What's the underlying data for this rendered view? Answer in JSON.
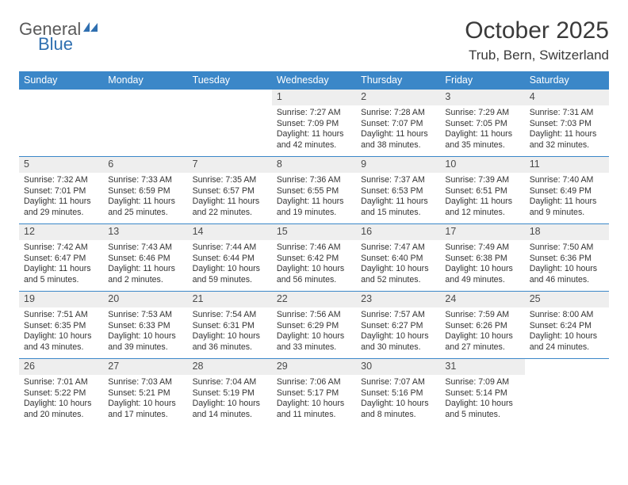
{
  "logo": {
    "word1": "General",
    "word2": "Blue"
  },
  "title": "October 2025",
  "location": "Trub, Bern, Switzerland",
  "colors": {
    "header_bg": "#3b87c8",
    "header_text": "#ffffff",
    "daynum_bg": "#eeeeee",
    "rule": "#3b87c8",
    "logo_blue": "#2f6fb0",
    "logo_gray": "#6a6a6a",
    "text": "#333333",
    "page_bg": "#ffffff"
  },
  "weekdays": [
    "Sunday",
    "Monday",
    "Tuesday",
    "Wednesday",
    "Thursday",
    "Friday",
    "Saturday"
  ],
  "weeks": [
    [
      {
        "n": "",
        "sr": "",
        "ss": "",
        "dl": ""
      },
      {
        "n": "",
        "sr": "",
        "ss": "",
        "dl": ""
      },
      {
        "n": "",
        "sr": "",
        "ss": "",
        "dl": ""
      },
      {
        "n": "1",
        "sr": "Sunrise: 7:27 AM",
        "ss": "Sunset: 7:09 PM",
        "dl": "Daylight: 11 hours and 42 minutes."
      },
      {
        "n": "2",
        "sr": "Sunrise: 7:28 AM",
        "ss": "Sunset: 7:07 PM",
        "dl": "Daylight: 11 hours and 38 minutes."
      },
      {
        "n": "3",
        "sr": "Sunrise: 7:29 AM",
        "ss": "Sunset: 7:05 PM",
        "dl": "Daylight: 11 hours and 35 minutes."
      },
      {
        "n": "4",
        "sr": "Sunrise: 7:31 AM",
        "ss": "Sunset: 7:03 PM",
        "dl": "Daylight: 11 hours and 32 minutes."
      }
    ],
    [
      {
        "n": "5",
        "sr": "Sunrise: 7:32 AM",
        "ss": "Sunset: 7:01 PM",
        "dl": "Daylight: 11 hours and 29 minutes."
      },
      {
        "n": "6",
        "sr": "Sunrise: 7:33 AM",
        "ss": "Sunset: 6:59 PM",
        "dl": "Daylight: 11 hours and 25 minutes."
      },
      {
        "n": "7",
        "sr": "Sunrise: 7:35 AM",
        "ss": "Sunset: 6:57 PM",
        "dl": "Daylight: 11 hours and 22 minutes."
      },
      {
        "n": "8",
        "sr": "Sunrise: 7:36 AM",
        "ss": "Sunset: 6:55 PM",
        "dl": "Daylight: 11 hours and 19 minutes."
      },
      {
        "n": "9",
        "sr": "Sunrise: 7:37 AM",
        "ss": "Sunset: 6:53 PM",
        "dl": "Daylight: 11 hours and 15 minutes."
      },
      {
        "n": "10",
        "sr": "Sunrise: 7:39 AM",
        "ss": "Sunset: 6:51 PM",
        "dl": "Daylight: 11 hours and 12 minutes."
      },
      {
        "n": "11",
        "sr": "Sunrise: 7:40 AM",
        "ss": "Sunset: 6:49 PM",
        "dl": "Daylight: 11 hours and 9 minutes."
      }
    ],
    [
      {
        "n": "12",
        "sr": "Sunrise: 7:42 AM",
        "ss": "Sunset: 6:47 PM",
        "dl": "Daylight: 11 hours and 5 minutes."
      },
      {
        "n": "13",
        "sr": "Sunrise: 7:43 AM",
        "ss": "Sunset: 6:46 PM",
        "dl": "Daylight: 11 hours and 2 minutes."
      },
      {
        "n": "14",
        "sr": "Sunrise: 7:44 AM",
        "ss": "Sunset: 6:44 PM",
        "dl": "Daylight: 10 hours and 59 minutes."
      },
      {
        "n": "15",
        "sr": "Sunrise: 7:46 AM",
        "ss": "Sunset: 6:42 PM",
        "dl": "Daylight: 10 hours and 56 minutes."
      },
      {
        "n": "16",
        "sr": "Sunrise: 7:47 AM",
        "ss": "Sunset: 6:40 PM",
        "dl": "Daylight: 10 hours and 52 minutes."
      },
      {
        "n": "17",
        "sr": "Sunrise: 7:49 AM",
        "ss": "Sunset: 6:38 PM",
        "dl": "Daylight: 10 hours and 49 minutes."
      },
      {
        "n": "18",
        "sr": "Sunrise: 7:50 AM",
        "ss": "Sunset: 6:36 PM",
        "dl": "Daylight: 10 hours and 46 minutes."
      }
    ],
    [
      {
        "n": "19",
        "sr": "Sunrise: 7:51 AM",
        "ss": "Sunset: 6:35 PM",
        "dl": "Daylight: 10 hours and 43 minutes."
      },
      {
        "n": "20",
        "sr": "Sunrise: 7:53 AM",
        "ss": "Sunset: 6:33 PM",
        "dl": "Daylight: 10 hours and 39 minutes."
      },
      {
        "n": "21",
        "sr": "Sunrise: 7:54 AM",
        "ss": "Sunset: 6:31 PM",
        "dl": "Daylight: 10 hours and 36 minutes."
      },
      {
        "n": "22",
        "sr": "Sunrise: 7:56 AM",
        "ss": "Sunset: 6:29 PM",
        "dl": "Daylight: 10 hours and 33 minutes."
      },
      {
        "n": "23",
        "sr": "Sunrise: 7:57 AM",
        "ss": "Sunset: 6:27 PM",
        "dl": "Daylight: 10 hours and 30 minutes."
      },
      {
        "n": "24",
        "sr": "Sunrise: 7:59 AM",
        "ss": "Sunset: 6:26 PM",
        "dl": "Daylight: 10 hours and 27 minutes."
      },
      {
        "n": "25",
        "sr": "Sunrise: 8:00 AM",
        "ss": "Sunset: 6:24 PM",
        "dl": "Daylight: 10 hours and 24 minutes."
      }
    ],
    [
      {
        "n": "26",
        "sr": "Sunrise: 7:01 AM",
        "ss": "Sunset: 5:22 PM",
        "dl": "Daylight: 10 hours and 20 minutes."
      },
      {
        "n": "27",
        "sr": "Sunrise: 7:03 AM",
        "ss": "Sunset: 5:21 PM",
        "dl": "Daylight: 10 hours and 17 minutes."
      },
      {
        "n": "28",
        "sr": "Sunrise: 7:04 AM",
        "ss": "Sunset: 5:19 PM",
        "dl": "Daylight: 10 hours and 14 minutes."
      },
      {
        "n": "29",
        "sr": "Sunrise: 7:06 AM",
        "ss": "Sunset: 5:17 PM",
        "dl": "Daylight: 10 hours and 11 minutes."
      },
      {
        "n": "30",
        "sr": "Sunrise: 7:07 AM",
        "ss": "Sunset: 5:16 PM",
        "dl": "Daylight: 10 hours and 8 minutes."
      },
      {
        "n": "31",
        "sr": "Sunrise: 7:09 AM",
        "ss": "Sunset: 5:14 PM",
        "dl": "Daylight: 10 hours and 5 minutes."
      },
      {
        "n": "",
        "sr": "",
        "ss": "",
        "dl": ""
      }
    ]
  ]
}
